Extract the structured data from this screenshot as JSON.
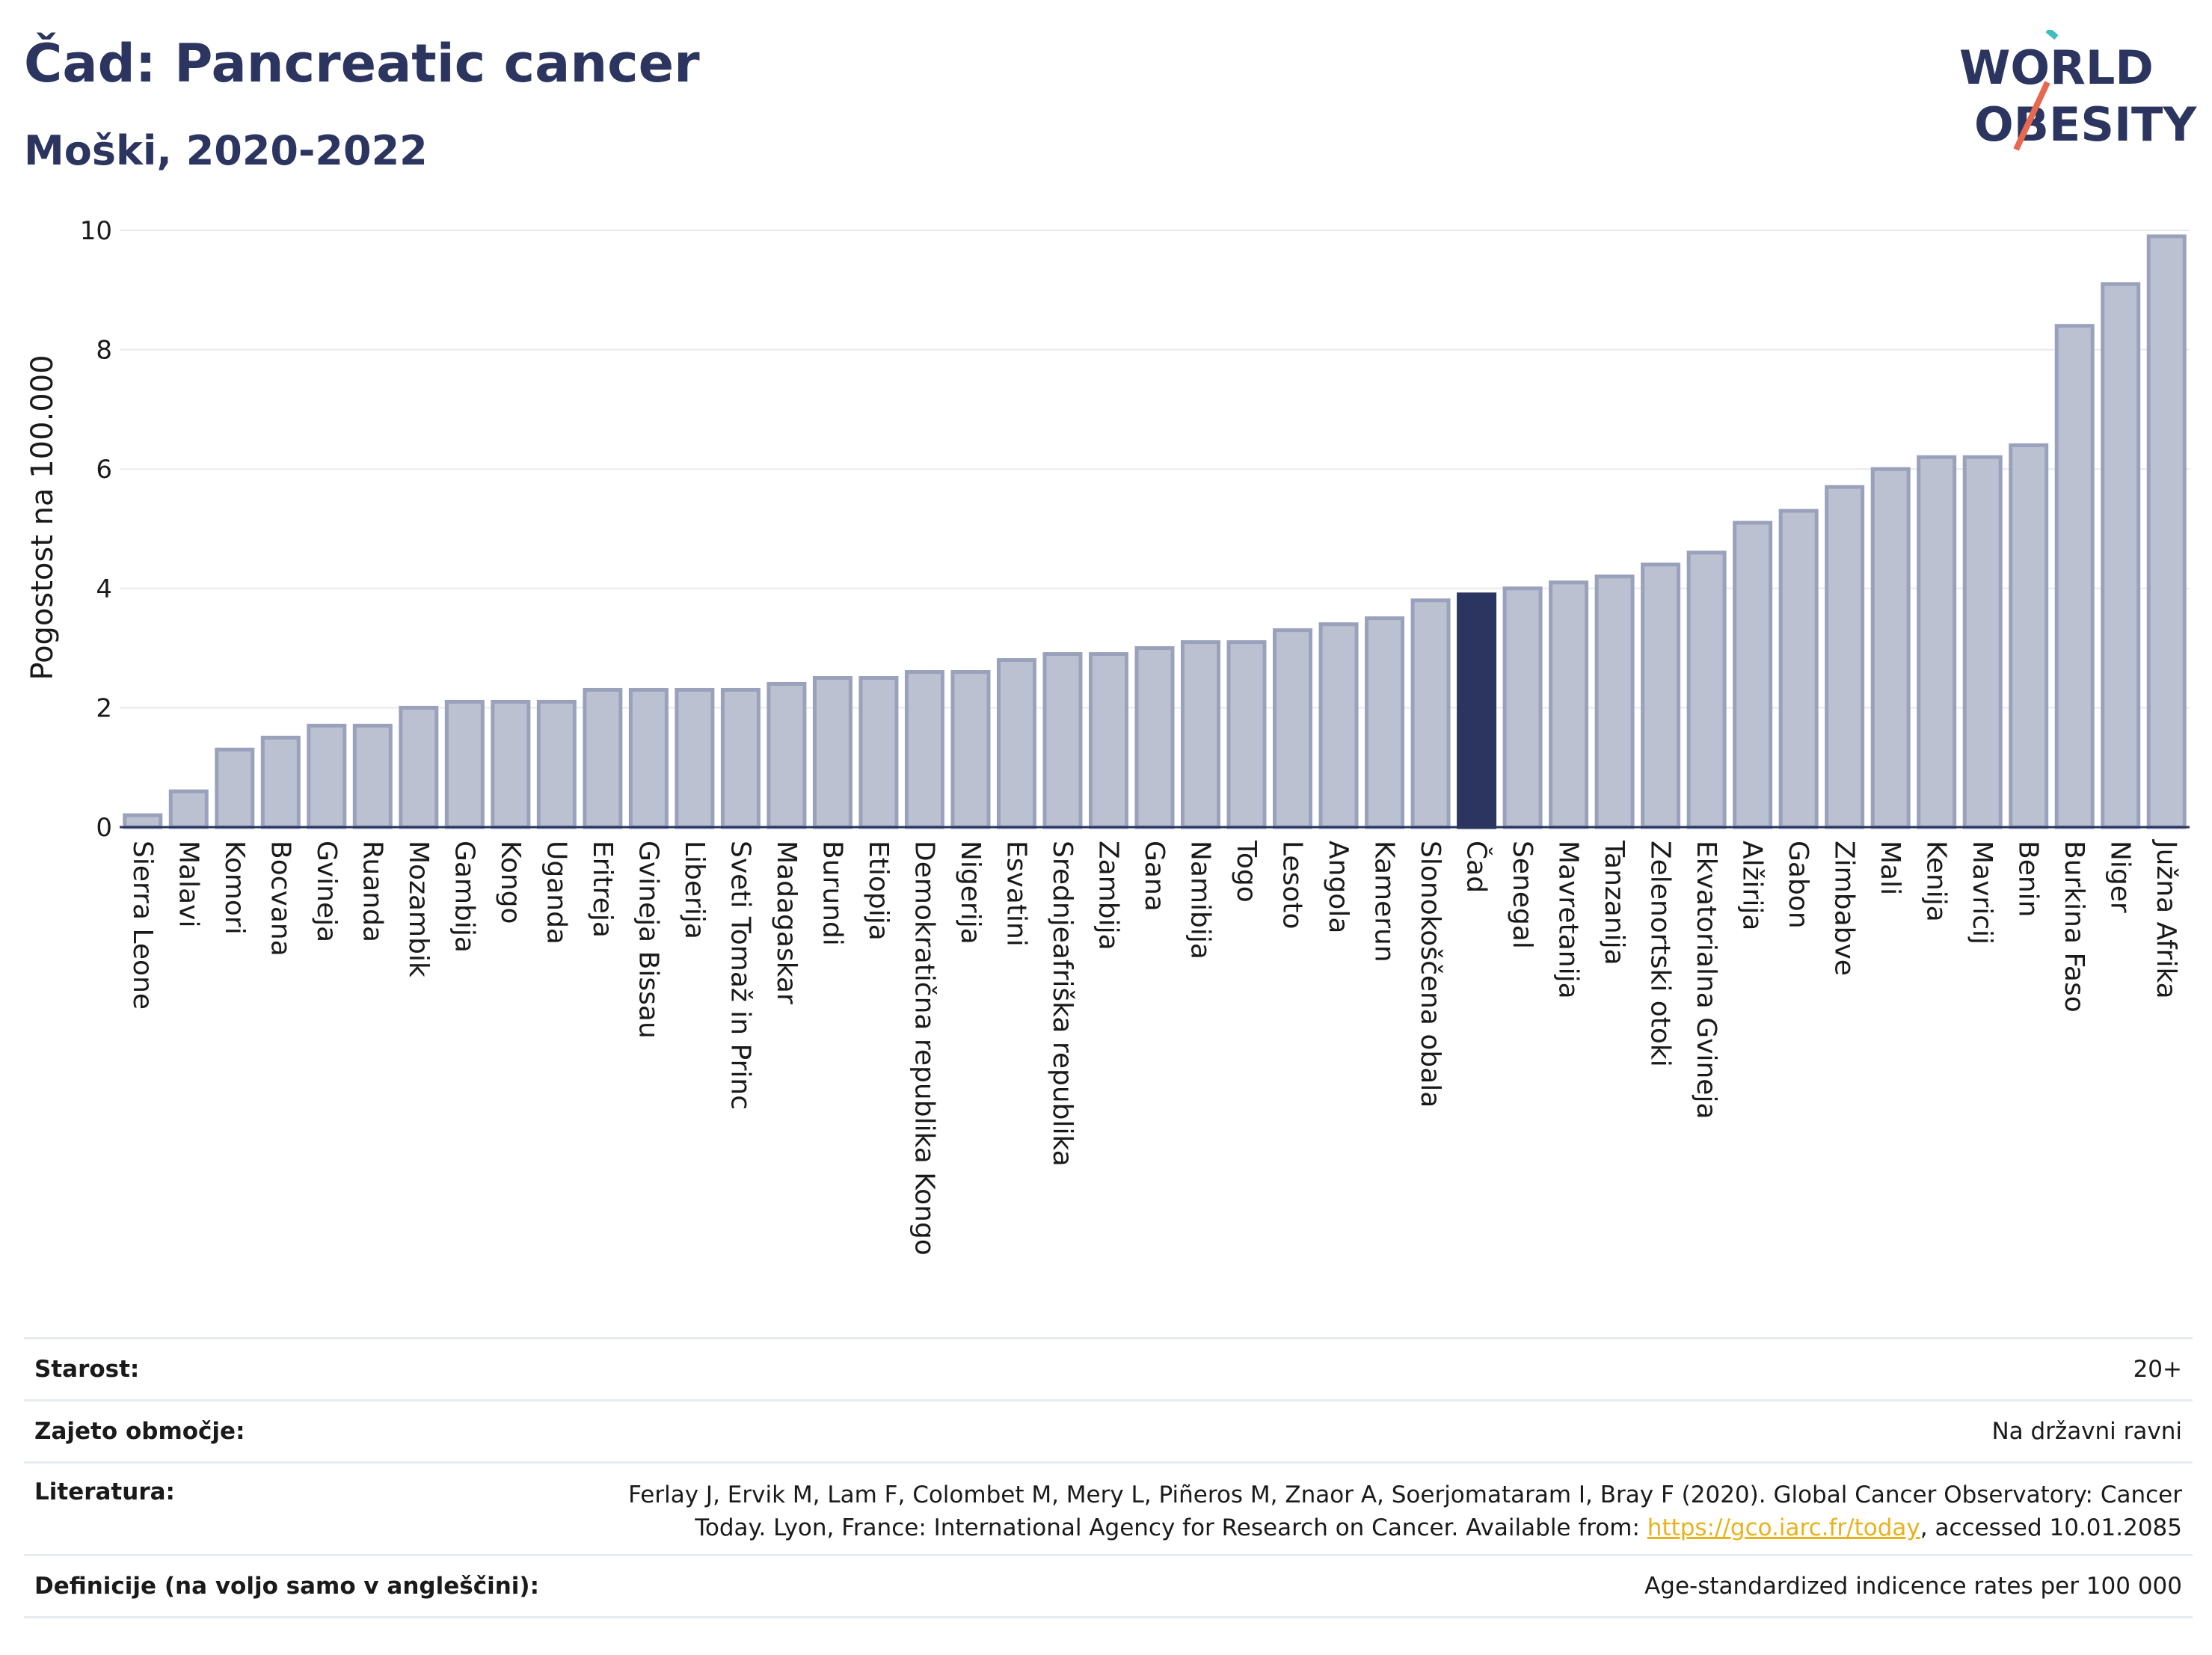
{
  "header": {
    "title": "Čad: Pancreatic cancer",
    "subtitle": "Moški, 2020-2022"
  },
  "logo": {
    "line1": "WORLD",
    "line2": "OBESITY"
  },
  "chart_data": {
    "type": "bar",
    "ylabel": "Pogostost na 100.000",
    "ylim": [
      0,
      10
    ],
    "yticks": [
      0,
      2,
      4,
      6,
      8,
      10
    ],
    "highlight": "Čad",
    "colors": {
      "bar": "#bcc1d1",
      "bar_stroke": "#9aa1bb",
      "highlight": "#2b3560",
      "grid": "#e8e8ee"
    },
    "categories": [
      "Sierra Leone",
      "Malavi",
      "Komori",
      "Bocvana",
      "Gvineja",
      "Ruanda",
      "Mozambik",
      "Gambija",
      "Kongo",
      "Uganda",
      "Eritreja",
      "Gvineja Bissau",
      "Liberija",
      "Sveti Tomaž in Princ",
      "Madagaskar",
      "Burundi",
      "Etiopija",
      "Demokratična republika Kongo",
      "Nigerija",
      "Esvatini",
      "Srednjeafriška republika",
      "Zambija",
      "Gana",
      "Namibija",
      "Togo",
      "Lesoto",
      "Angola",
      "Kamerun",
      "Slonokoščena obala",
      "Čad",
      "Senegal",
      "Mavretanija",
      "Tanzanija",
      "Zelenortski otoki",
      "Ekvatorialna Gvineja",
      "Alžirija",
      "Gabon",
      "Zimbabve",
      "Mali",
      "Kenija",
      "Mavricij",
      "Benin",
      "Burkina Faso",
      "Niger",
      "Južna Afrika"
    ],
    "values": [
      0.2,
      0.6,
      1.3,
      1.5,
      1.7,
      1.7,
      2.0,
      2.1,
      2.1,
      2.1,
      2.3,
      2.3,
      2.3,
      2.3,
      2.4,
      2.5,
      2.5,
      2.6,
      2.6,
      2.8,
      2.9,
      2.9,
      3.0,
      3.1,
      3.1,
      3.3,
      3.4,
      3.5,
      3.8,
      3.9,
      4.0,
      4.1,
      4.2,
      4.4,
      4.6,
      5.1,
      5.3,
      5.7,
      6.0,
      6.2,
      6.2,
      6.4,
      8.4,
      9.1,
      9.9
    ]
  },
  "info": [
    {
      "label": "Starost:",
      "value": "20+"
    },
    {
      "label": "Zajeto območje:",
      "value": "Na državni ravni"
    },
    {
      "label": "Literatura:",
      "value_part1": "Ferlay J, Ervik M, Lam F, Colombet M, Mery L, Piñeros M, Znaor A, Soerjomataram I, Bray F (2020). Global Cancer Observatory: Cancer Today. Lyon, France: International Agency for Research on Cancer. Available from: ",
      "link": "https://gco.iarc.fr/today",
      "value_part2": ", accessed 10.01.2085"
    },
    {
      "label": "Definicije (na voljo samo v angleščini):",
      "value": "Age-standardized indicence rates per 100 000"
    }
  ]
}
